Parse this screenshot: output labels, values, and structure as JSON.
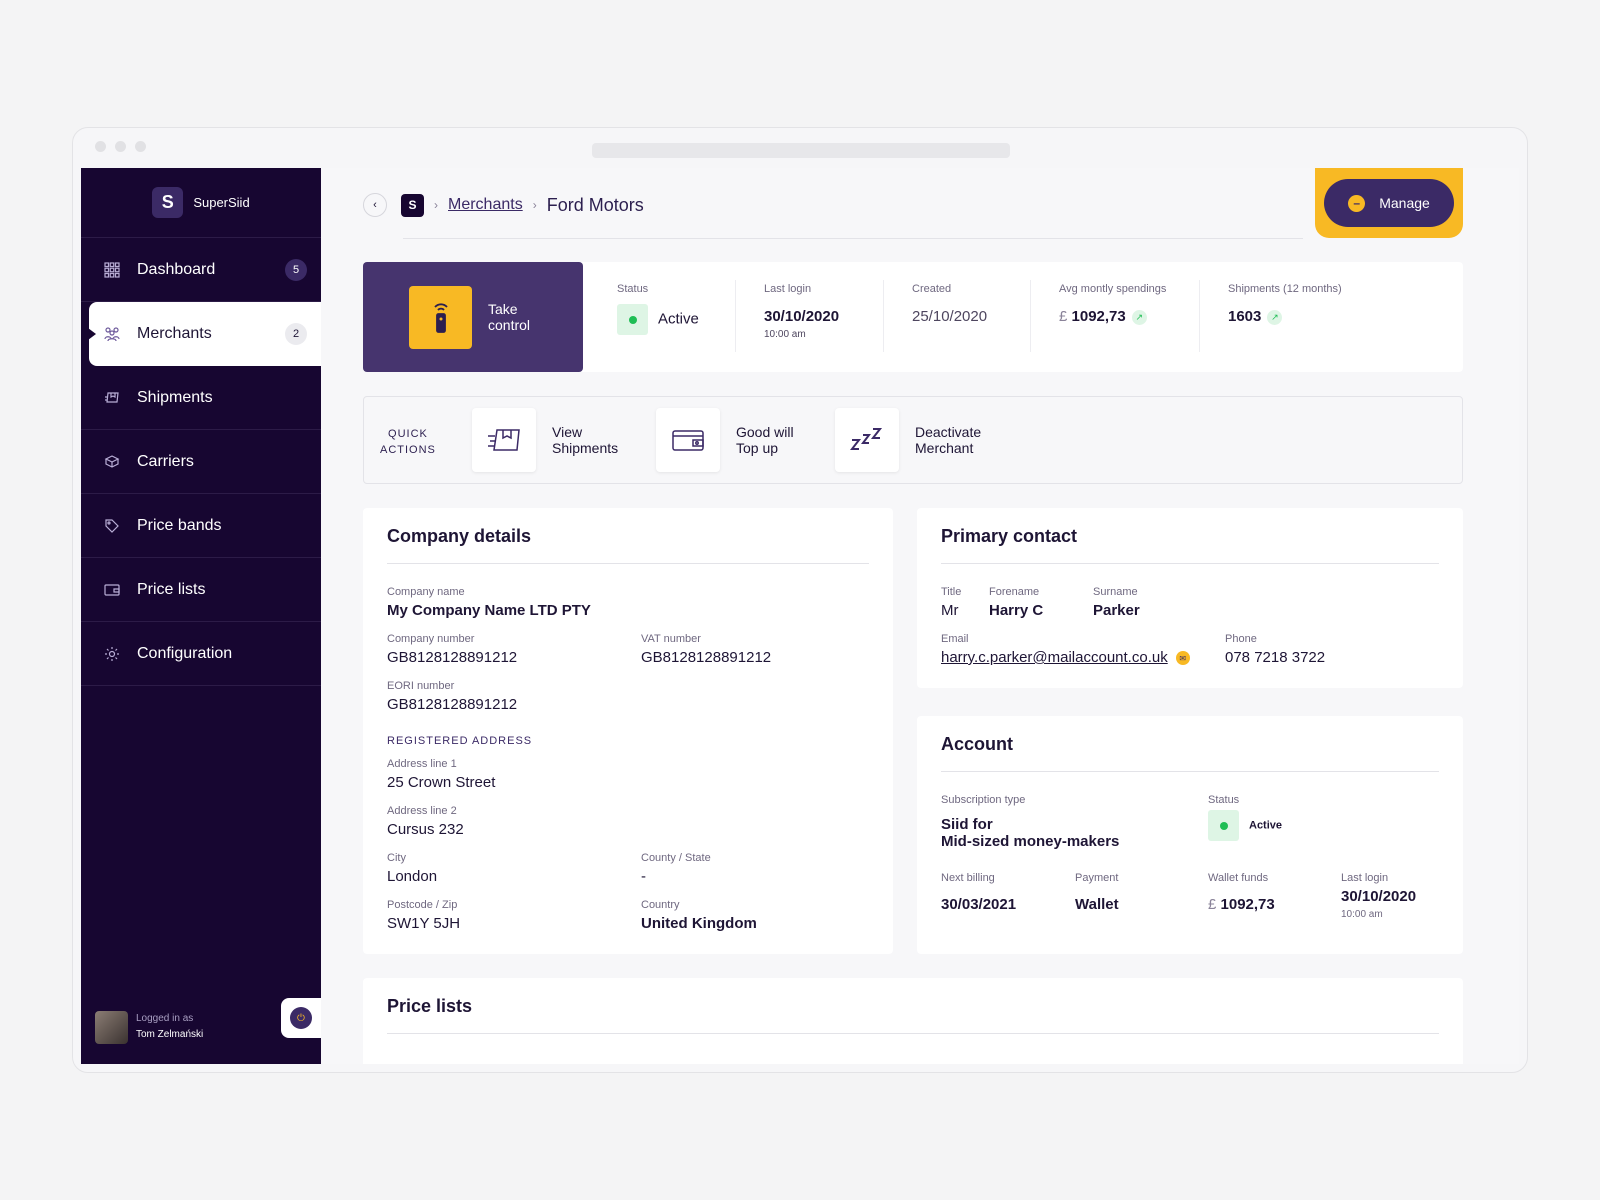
{
  "brand": {
    "name": "SuperSiid",
    "logo_letter": "S"
  },
  "sidebar": {
    "items": [
      {
        "label": "Dashboard",
        "icon": "grid-icon",
        "badge": "5"
      },
      {
        "label": "Merchants",
        "icon": "people-icon",
        "badge": "2",
        "active": true
      },
      {
        "label": "Shipments",
        "icon": "shipment-icon"
      },
      {
        "label": "Carriers",
        "icon": "box-icon"
      },
      {
        "label": "Price bands",
        "icon": "tag-icon"
      },
      {
        "label": "Price lists",
        "icon": "wallet-icon"
      },
      {
        "label": "Configuration",
        "icon": "gear-icon"
      }
    ]
  },
  "user": {
    "caption": "Logged in as",
    "name": "Tom Zelmański"
  },
  "breadcrumb": {
    "logo_letter": "S",
    "parent": "Merchants",
    "current": "Ford Motors"
  },
  "manage": {
    "label": "Manage"
  },
  "take_control": {
    "label": "Take control"
  },
  "stats": {
    "status": {
      "label": "Status",
      "value": "Active"
    },
    "last_login": {
      "label": "Last login",
      "date": "30/10/2020",
      "time": "10:00 am"
    },
    "created": {
      "label": "Created",
      "value": "25/10/2020"
    },
    "avg": {
      "label": "Avg montly spendings",
      "currency": "£",
      "value": "1092,73"
    },
    "shipments": {
      "label": "Shipments (12 months)",
      "value": "1603"
    }
  },
  "quick_actions": {
    "title_1": "QUICK",
    "title_2": "ACTIONS",
    "items": [
      {
        "line1": "View",
        "line2": "Shipments"
      },
      {
        "line1": "Good will",
        "line2": "Top up"
      },
      {
        "line1": "Deactivate",
        "line2": "Merchant"
      }
    ]
  },
  "company": {
    "title": "Company details",
    "name_label": "Company name",
    "name": "My Company Name LTD PTY",
    "number_label": "Company number",
    "number": "GB8128128891212",
    "vat_label": "VAT number",
    "vat": "GB8128128891212",
    "eori_label": "EORI number",
    "eori": "GB8128128891212",
    "address_section": "REGISTERED ADDRESS",
    "addr1_label": "Address line 1",
    "addr1": "25 Crown Street",
    "addr2_label": "Address line 2",
    "addr2": "Cursus 232",
    "city_label": "City",
    "city": "London",
    "county_label": "County / State",
    "county": "-",
    "postcode_label": "Postcode / Zip",
    "postcode": "SW1Y 5JH",
    "country_label": "Country",
    "country": "United Kingdom"
  },
  "contact": {
    "title": "Primary contact",
    "title_label": "Title",
    "title_value": "Mr",
    "forename_label": "Forename",
    "forename": "Harry C",
    "surname_label": "Surname",
    "surname": "Parker",
    "email_label": "Email",
    "email": "harry.c.parker@mailaccount.co.uk",
    "phone_label": "Phone",
    "phone": "078 7218 3722"
  },
  "account": {
    "title": "Account",
    "sub_label": "Subscription type",
    "sub_line1": "Siid for",
    "sub_line2": "Mid-sized money-makers",
    "status_label": "Status",
    "status": "Active",
    "billing_label": "Next billing",
    "billing": "30/03/2021",
    "payment_label": "Payment",
    "payment": "Wallet",
    "wallet_label": "Wallet funds",
    "wallet_currency": "£",
    "wallet": "1092,73",
    "login_label": "Last login",
    "login_date": "30/10/2020",
    "login_time": "10:00 am"
  },
  "price_lists": {
    "title": "Price lists"
  }
}
